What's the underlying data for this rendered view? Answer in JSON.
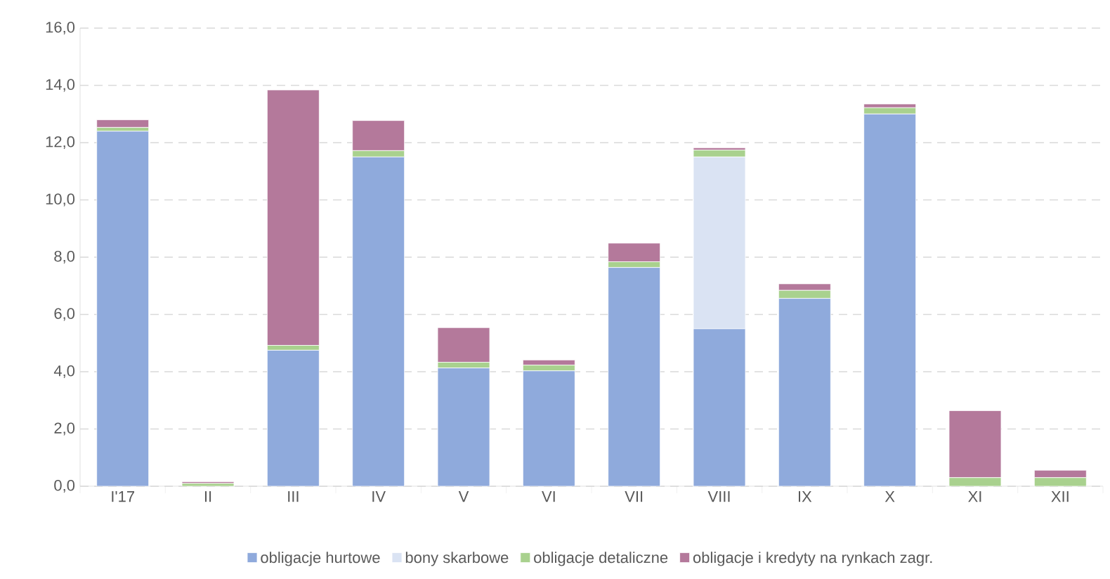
{
  "chart_data": {
    "type": "bar",
    "stacked": true,
    "categories": [
      "I'17",
      "II",
      "III",
      "IV",
      "V",
      "VI",
      "VII",
      "VIII",
      "IX",
      "X",
      "XI",
      "XII"
    ],
    "series": [
      {
        "name": "obligacje hurtowe",
        "color": "#8faadc",
        "values": [
          12.4,
          0,
          4.75,
          11.5,
          4.13,
          4.03,
          7.64,
          5.5,
          6.56,
          13.0,
          0,
          0
        ]
      },
      {
        "name": "bony skarbowe",
        "color": "#dae3f3",
        "values": [
          0,
          0,
          0,
          0,
          0,
          0,
          0,
          6.0,
          0,
          0,
          0,
          0
        ]
      },
      {
        "name": "obligacje detaliczne",
        "color": "#a9d18e",
        "values": [
          0.13,
          0.1,
          0.17,
          0.22,
          0.2,
          0.2,
          0.2,
          0.24,
          0.28,
          0.22,
          0.3,
          0.3
        ]
      },
      {
        "name": "obligacje i kredyty na rynkach zagr.",
        "color": "#b4799b",
        "values": [
          0.27,
          0.06,
          8.92,
          1.05,
          1.21,
          0.18,
          0.65,
          0.08,
          0.23,
          0.13,
          2.34,
          0.26
        ]
      }
    ],
    "ylim": [
      0,
      16
    ],
    "yticks": [
      {
        "value": 0,
        "label": "0,0"
      },
      {
        "value": 2,
        "label": "2,0"
      },
      {
        "value": 4,
        "label": "4,0"
      },
      {
        "value": 6,
        "label": "6,0"
      },
      {
        "value": 8,
        "label": "8,0"
      },
      {
        "value": 10,
        "label": "10,0"
      },
      {
        "value": 12,
        "label": "12,0"
      },
      {
        "value": 14,
        "label": "14,0"
      },
      {
        "value": 16,
        "label": "16,0"
      }
    ],
    "grid": "y",
    "legend": "bottom"
  }
}
